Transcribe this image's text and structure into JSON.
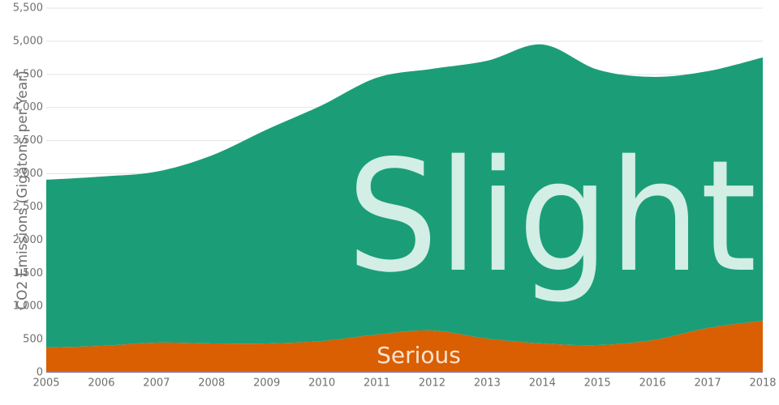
{
  "chart_data": {
    "type": "stacked-area",
    "y_label": "CO2 Emissions (Gigatons per Year)",
    "x": [
      2005,
      2006,
      2007,
      2008,
      2009,
      2010,
      2011,
      2012,
      2013,
      2014,
      2015,
      2016,
      2017,
      2018
    ],
    "xlim": [
      2005,
      2018
    ],
    "xticks": [
      2005,
      2006,
      2007,
      2008,
      2009,
      2010,
      2011,
      2012,
      2013,
      2014,
      2015,
      2016,
      2017,
      2018
    ],
    "ylim": [
      0,
      5500
    ],
    "yticks": [
      0,
      500,
      {
        "value": 1000,
        "label": "1,000"
      },
      {
        "value": 1500,
        "label": "1,500"
      },
      {
        "value": 2000,
        "label": "2,000"
      },
      {
        "value": 2500,
        "label": "2,500"
      },
      {
        "value": 3000,
        "label": "3,000"
      },
      {
        "value": 3500,
        "label": "3,500"
      },
      {
        "value": 4000,
        "label": "4,000"
      },
      {
        "value": 4500,
        "label": "4,500"
      },
      {
        "value": 5000,
        "label": "5,000"
      },
      {
        "value": 5500,
        "label": "5,500"
      }
    ],
    "grid": true,
    "series": [
      {
        "color": "#7570b3",
        "values": [
          20,
          20,
          20,
          20,
          20,
          20,
          20,
          20,
          20,
          20,
          20,
          20,
          20,
          20
        ]
      },
      {
        "name": "Serious",
        "color": "#d95f02",
        "values": [
          360,
          383,
          432,
          420,
          420,
          457,
          555,
          616,
          493,
          420,
          396,
          469,
          652,
          762
        ]
      },
      {
        "name": "Slight",
        "color": "#1b9e77",
        "values": [
          2530,
          2555,
          2580,
          2836,
          3227,
          3557,
          3875,
          3948,
          4193,
          4511,
          4156,
          3973,
          3876,
          3974
        ]
      }
    ]
  }
}
